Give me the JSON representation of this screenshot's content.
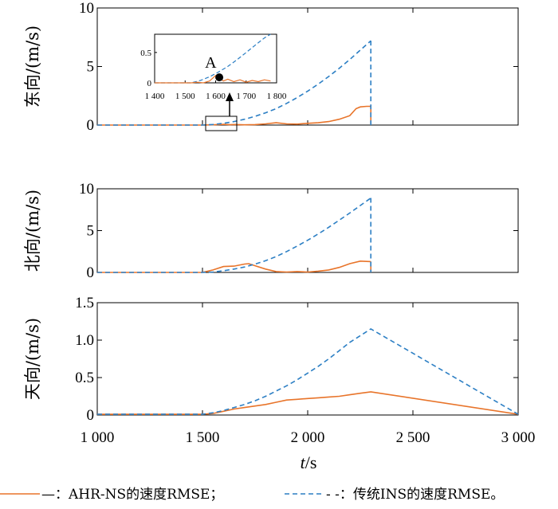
{
  "chart_data": {
    "type": "line",
    "x_axis": {
      "label_var": "t",
      "label_unit": "/s",
      "range": [
        1000,
        3000
      ],
      "ticks": [
        1000,
        1500,
        2000,
        2500,
        3000
      ],
      "tick_labels": [
        "1 000",
        "1 500",
        "2 000",
        "2 500",
        "3 000"
      ]
    },
    "legend": [
      {
        "name": "—：AHR-NS的速度RMSE；",
        "color": "#e8742a",
        "style": "solid"
      },
      {
        "name": "- -：传统INS的速度RMSE。",
        "color": "#2c7fc4",
        "style": "dashed"
      }
    ],
    "panels": [
      {
        "ylabel": "东向/(m/s)",
        "ylim": [
          0,
          10
        ],
        "yticks": [
          0,
          5,
          10
        ],
        "ytick_labels": [
          "0",
          "5",
          "10"
        ],
        "series": [
          {
            "key": "ahr",
            "x": [
              1000,
              1500,
              1550,
              1600,
              1630,
              1650,
              1700,
              1750,
              1800,
              1850,
              1900,
              1950,
              2000,
              2050,
              2100,
              2150,
              2200,
              2230,
              2250,
              2280,
              2300
            ],
            "y": [
              0,
              0,
              0.02,
              0.06,
              0.03,
              0.05,
              0.02,
              0.04,
              0.1,
              0.2,
              0.1,
              0.08,
              0.15,
              0.2,
              0.3,
              0.5,
              0.8,
              1.4,
              1.55,
              1.6,
              1.6
            ]
          },
          {
            "key": "ins",
            "x": [
              1000,
              1500,
              1550,
              1600,
              1650,
              1700,
              1750,
              1800,
              1850,
              1900,
              1950,
              2000,
              2050,
              2100,
              2150,
              2200,
              2250,
              2300
            ],
            "y": [
              0,
              0,
              0.05,
              0.15,
              0.3,
              0.5,
              0.75,
              1.05,
              1.4,
              1.85,
              2.35,
              2.9,
              3.5,
              4.15,
              4.85,
              5.6,
              6.4,
              7.2
            ]
          }
        ],
        "inset": {
          "xlim": [
            1400,
            1800
          ],
          "ylim": [
            0,
            0.8
          ],
          "xtick_labels": [
            "1 400",
            "1 500",
            "1 600",
            "1 700",
            "1 800"
          ],
          "xticks": [
            1400,
            1500,
            1600,
            1700,
            1800
          ],
          "ytick_labels": [
            "0",
            "0.5"
          ],
          "yticks": [
            0,
            0.5
          ],
          "annotation": "A",
          "point": {
            "x": 1612,
            "y": 0.09
          },
          "ahr": {
            "x": [
              1400,
              1520,
              1540,
              1560,
              1580,
              1600,
              1612,
              1625,
              1640,
              1660,
              1680,
              1700,
              1720,
              1740,
              1760,
              1780
            ],
            "y": [
              0,
              0,
              0.01,
              0.0,
              0.03,
              0.12,
              0.09,
              0.03,
              0.06,
              0.02,
              0.05,
              0.01,
              0.04,
              0.02,
              0.05,
              0.03
            ]
          },
          "ins": {
            "x": [
              1400,
              1520,
              1550,
              1580,
              1610,
              1640,
              1670,
              1700,
              1730,
              1760,
              1780
            ],
            "y": [
              0,
              0,
              0.04,
              0.1,
              0.18,
              0.27,
              0.38,
              0.5,
              0.62,
              0.74,
              0.8
            ]
          }
        }
      },
      {
        "ylabel": "北向/(m/s)",
        "ylim": [
          0,
          10
        ],
        "yticks": [
          0,
          5,
          10
        ],
        "ytick_labels": [
          "0",
          "5",
          "10"
        ],
        "series": [
          {
            "key": "ahr",
            "x": [
              1000,
              1500,
              1550,
              1600,
              1650,
              1700,
              1720,
              1750,
              1800,
              1850,
              1900,
              1950,
              2000,
              2050,
              2100,
              2150,
              2200,
              2250,
              2300
            ],
            "y": [
              0,
              0,
              0.3,
              0.7,
              0.75,
              1.0,
              1.05,
              0.8,
              0.4,
              0.1,
              0.05,
              0.1,
              0.05,
              0.15,
              0.3,
              0.6,
              1.05,
              1.35,
              1.3
            ]
          },
          {
            "key": "ins",
            "x": [
              1000,
              1500,
              1550,
              1600,
              1650,
              1700,
              1750,
              1800,
              1850,
              1900,
              1950,
              2000,
              2050,
              2100,
              2150,
              2200,
              2250,
              2300
            ],
            "y": [
              0,
              0,
              0.05,
              0.2,
              0.4,
              0.65,
              1.0,
              1.4,
              1.9,
              2.5,
              3.15,
              3.85,
              4.6,
              5.4,
              6.25,
              7.1,
              8.0,
              8.9
            ]
          }
        ]
      },
      {
        "ylabel": "天向/(m/s)",
        "ylim": [
          0,
          1.5
        ],
        "yticks": [
          0,
          0.5,
          1.0,
          1.5
        ],
        "ytick_labels": [
          "0",
          "0.5",
          "1.0",
          "1.5"
        ],
        "series": [
          {
            "key": "ahr",
            "x": [
              1000,
              1500,
              1550,
              1600,
              1650,
              1700,
              1750,
              1800,
              1850,
              1900,
              1950,
              2000,
              2050,
              2100,
              2150,
              2200,
              2250,
              2300,
              3000
            ],
            "y": [
              0.01,
              0.01,
              0.02,
              0.05,
              0.08,
              0.1,
              0.12,
              0.14,
              0.17,
              0.2,
              0.21,
              0.22,
              0.23,
              0.24,
              0.25,
              0.27,
              0.29,
              0.31,
              0.01
            ]
          },
          {
            "key": "ins",
            "x": [
              1000,
              1500,
              1550,
              1600,
              1650,
              1700,
              1750,
              1800,
              1850,
              1900,
              1950,
              2000,
              2050,
              2100,
              2150,
              2200,
              2250,
              2300,
              3000
            ],
            "y": [
              0.01,
              0.01,
              0.03,
              0.06,
              0.1,
              0.14,
              0.19,
              0.25,
              0.32,
              0.39,
              0.47,
              0.56,
              0.65,
              0.75,
              0.86,
              0.97,
              1.06,
              1.15,
              0.01
            ]
          }
        ]
      }
    ]
  }
}
